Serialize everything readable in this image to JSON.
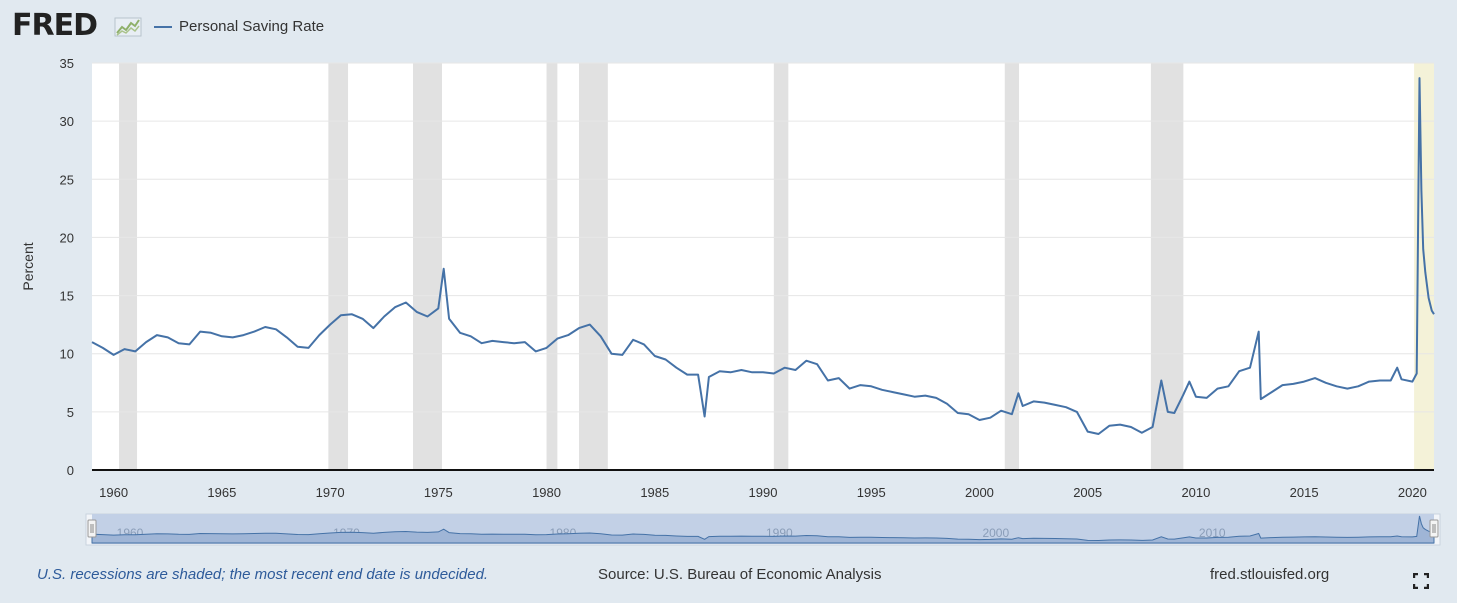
{
  "header": {
    "logo_text": "FRED",
    "logo_icon": "line-graph-icon",
    "legend_label": "Personal Saving Rate"
  },
  "colors": {
    "series": "#4572a7",
    "recession": "#e1e1e1",
    "undecided": "#f4f2d8",
    "navigator": "#c2d0e6",
    "navigator_series": "#4572a7",
    "background": "#e1e9f0"
  },
  "footer": {
    "note": "U.S. recessions are shaded; the most recent end date is undecided.",
    "source": "Source: U.S. Bureau of Economic Analysis",
    "url": "fred.stlouisfed.org",
    "fullscreen_icon": "fullscreen-icon"
  },
  "chart_data": {
    "type": "line",
    "series": [
      {
        "name": "Personal Saving Rate",
        "x": [
          1959.0,
          1959.5,
          1960.0,
          1960.5,
          1961.0,
          1961.5,
          1962.0,
          1962.5,
          1963.0,
          1963.5,
          1964.0,
          1964.5,
          1965.0,
          1965.5,
          1966.0,
          1966.5,
          1967.0,
          1967.5,
          1968.0,
          1968.5,
          1969.0,
          1969.5,
          1970.0,
          1970.5,
          1971.0,
          1971.5,
          1972.0,
          1972.5,
          1973.0,
          1973.5,
          1974.0,
          1974.5,
          1975.0,
          1975.25,
          1975.5,
          1976.0,
          1976.5,
          1977.0,
          1977.5,
          1978.0,
          1978.5,
          1979.0,
          1979.5,
          1980.0,
          1980.5,
          1981.0,
          1981.5,
          1982.0,
          1982.5,
          1983.0,
          1983.5,
          1984.0,
          1984.5,
          1985.0,
          1985.5,
          1986.0,
          1986.5,
          1987.0,
          1987.3,
          1987.5,
          1988.0,
          1988.5,
          1989.0,
          1989.5,
          1990.0,
          1990.5,
          1991.0,
          1991.5,
          1992.0,
          1992.5,
          1993.0,
          1993.5,
          1994.0,
          1994.5,
          1995.0,
          1995.5,
          1996.0,
          1996.5,
          1997.0,
          1997.5,
          1998.0,
          1998.5,
          1999.0,
          1999.5,
          2000.0,
          2000.5,
          2001.0,
          2001.5,
          2001.8,
          2002.0,
          2002.5,
          2003.0,
          2003.5,
          2004.0,
          2004.5,
          2005.0,
          2005.5,
          2006.0,
          2006.5,
          2007.0,
          2007.5,
          2008.0,
          2008.4,
          2008.7,
          2009.0,
          2009.4,
          2009.7,
          2010.0,
          2010.5,
          2011.0,
          2011.5,
          2012.0,
          2012.5,
          2012.9,
          2013.0,
          2013.5,
          2014.0,
          2014.5,
          2015.0,
          2015.5,
          2016.0,
          2016.5,
          2017.0,
          2017.5,
          2018.0,
          2018.5,
          2019.0,
          2019.3,
          2019.5,
          2020.0,
          2020.2,
          2020.33,
          2020.42,
          2020.5,
          2020.6,
          2020.75,
          2020.9,
          2021.0
        ],
        "values": [
          11.0,
          10.5,
          9.9,
          10.4,
          10.2,
          11.0,
          11.6,
          11.4,
          10.9,
          10.8,
          11.9,
          11.8,
          11.5,
          11.4,
          11.6,
          11.9,
          12.3,
          12.1,
          11.4,
          10.6,
          10.5,
          11.6,
          12.5,
          13.3,
          13.4,
          13.0,
          12.2,
          13.2,
          14.0,
          14.4,
          13.6,
          13.2,
          13.9,
          17.3,
          13.0,
          11.8,
          11.5,
          10.9,
          11.1,
          11.0,
          10.9,
          11.0,
          10.2,
          10.5,
          11.3,
          11.6,
          12.2,
          12.5,
          11.5,
          10.0,
          9.9,
          11.2,
          10.8,
          9.8,
          9.5,
          8.8,
          8.2,
          8.2,
          4.6,
          8.0,
          8.5,
          8.4,
          8.6,
          8.4,
          8.4,
          8.3,
          8.8,
          8.6,
          9.4,
          9.1,
          7.7,
          7.9,
          7.0,
          7.3,
          7.2,
          6.9,
          6.7,
          6.5,
          6.3,
          6.4,
          6.2,
          5.7,
          4.9,
          4.8,
          4.3,
          4.5,
          5.1,
          4.8,
          6.6,
          5.5,
          5.9,
          5.8,
          5.6,
          5.4,
          5.0,
          3.3,
          3.1,
          3.8,
          3.9,
          3.7,
          3.2,
          3.7,
          7.7,
          5.0,
          4.9,
          6.4,
          7.6,
          6.3,
          6.2,
          7.0,
          7.2,
          8.5,
          8.8,
          11.9,
          6.1,
          6.7,
          7.3,
          7.4,
          7.6,
          7.9,
          7.5,
          7.2,
          7.0,
          7.2,
          7.6,
          7.7,
          7.7,
          8.8,
          7.8,
          7.6,
          8.3,
          33.7,
          24.0,
          19.0,
          17.0,
          14.8,
          13.7,
          13.4
        ]
      }
    ],
    "ylabel": "Percent",
    "ylim": [
      0,
      35
    ],
    "yticks": [
      0,
      5,
      10,
      15,
      20,
      25,
      30,
      35
    ],
    "xlim": [
      1959.0,
      2021.0
    ],
    "xticks": [
      1960,
      1965,
      1970,
      1975,
      1980,
      1985,
      1990,
      1995,
      2000,
      2005,
      2010,
      2015,
      2020
    ],
    "recessions": [
      [
        1960.25,
        1961.08
      ],
      [
        1969.92,
        1970.83
      ],
      [
        1973.83,
        1975.17
      ],
      [
        1980.0,
        1980.5
      ],
      [
        1981.5,
        1982.83
      ],
      [
        1990.5,
        1991.17
      ],
      [
        2001.17,
        2001.83
      ],
      [
        2007.92,
        2009.42
      ]
    ],
    "undecided_recession": [
      2020.08,
      2021.0
    ],
    "navigator": {
      "labels": [
        "1960",
        "1970",
        "1980",
        "1990",
        "2000",
        "2010"
      ]
    },
    "grid": "horizontal",
    "legend": "top-left"
  }
}
